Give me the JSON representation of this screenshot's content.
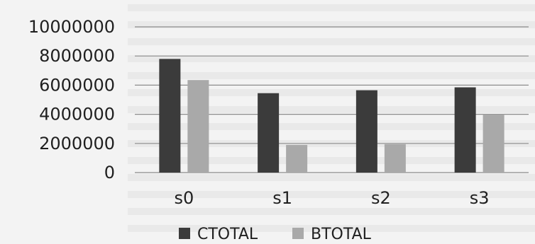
{
  "chart_data": {
    "type": "bar",
    "categories": [
      "s0",
      "s1",
      "s2",
      "s3"
    ],
    "series": [
      {
        "name": "CTOTAL",
        "values": [
          7800000,
          5450000,
          5650000,
          5850000
        ],
        "color": "#3b3b3b"
      },
      {
        "name": "BTOTAL",
        "values": [
          6350000,
          1900000,
          1950000,
          4000000
        ],
        "color": "#a9a9a9"
      }
    ],
    "yticks": [
      "0",
      "2000000",
      "4000000",
      "6000000",
      "8000000",
      "10000000"
    ],
    "ylim": [
      0,
      10000000
    ],
    "grid": true,
    "legend_position": "bottom"
  }
}
